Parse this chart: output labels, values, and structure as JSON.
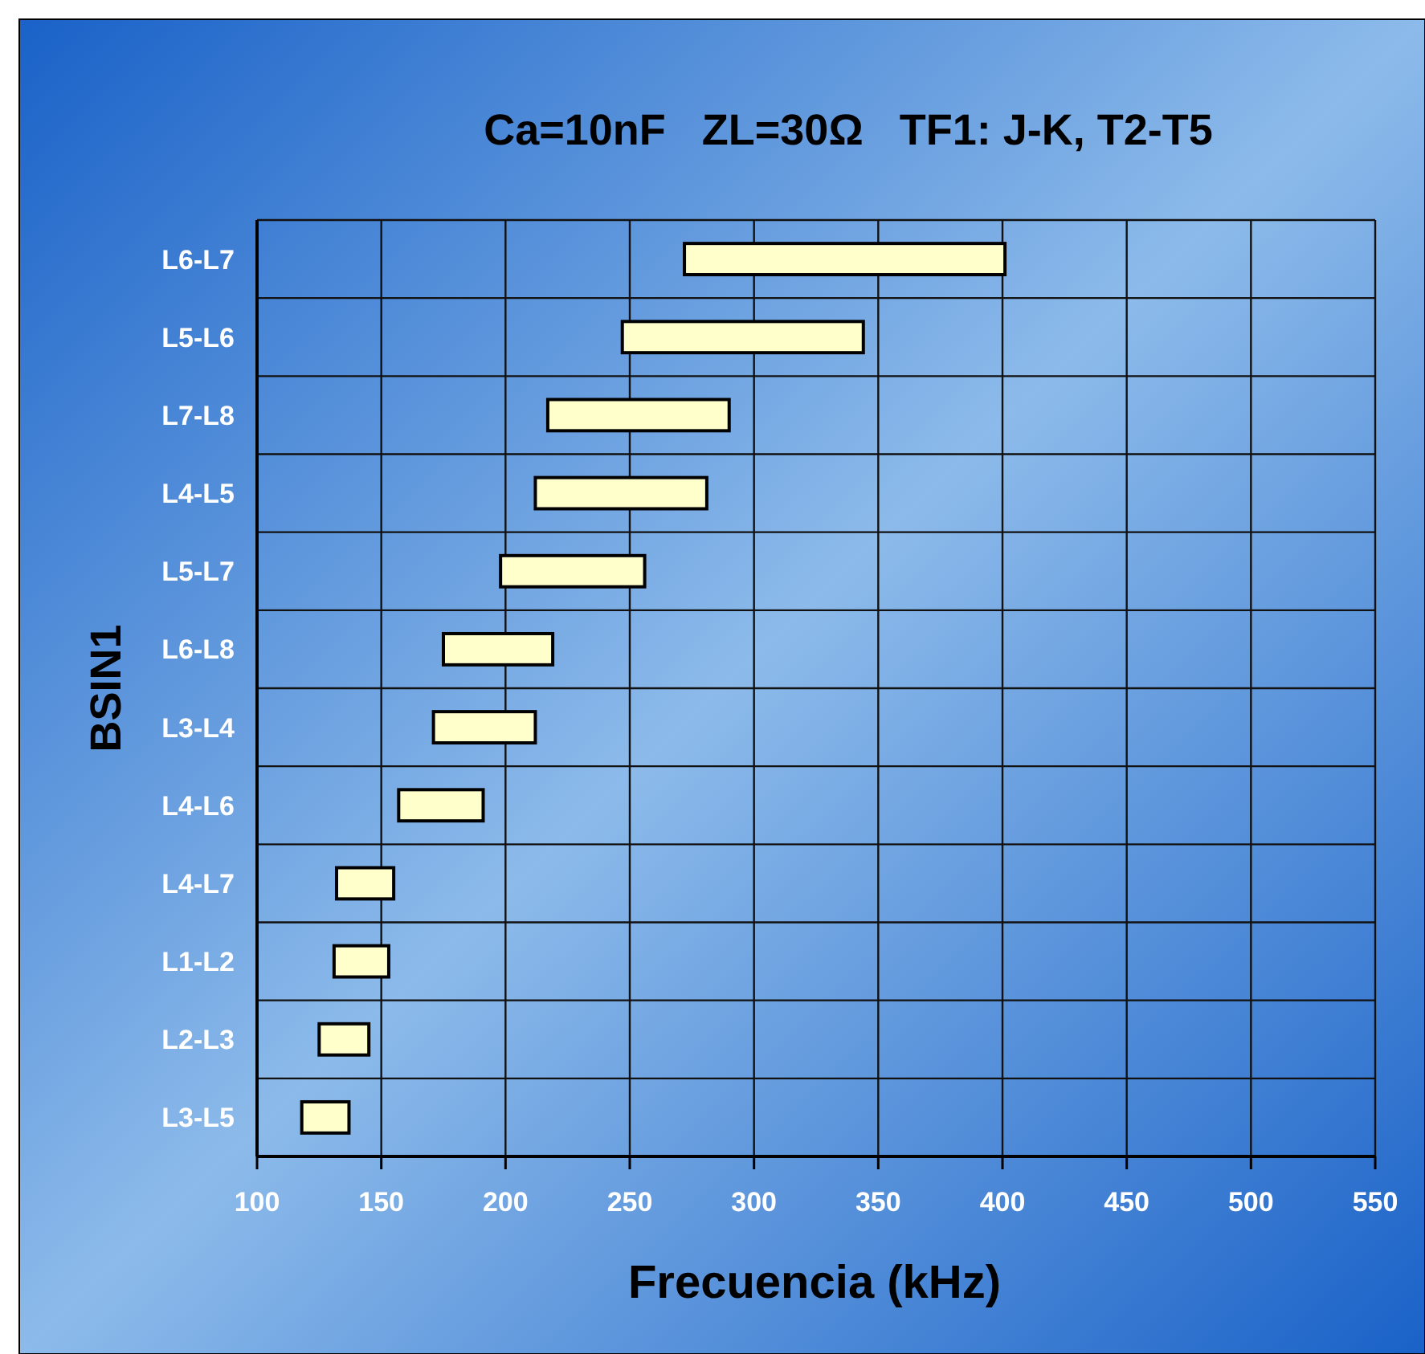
{
  "chart_data": {
    "type": "bar",
    "orientation": "horizontal",
    "title": "Ca=10nF   ZL=30Ω   TF1: J-K, T2-T5",
    "xlabel": "Frecuencia (kHz)",
    "ylabel": "BSIN1",
    "categories": [
      "L6-L7",
      "L5-L6",
      "L7-L8",
      "L4-L5",
      "L5-L7",
      "L6-L8",
      "L3-L4",
      "L4-L6",
      "L4-L7",
      "L1-L2",
      "L2-L3",
      "L3-L5"
    ],
    "base": [
      272,
      247,
      217,
      212,
      198,
      175,
      171,
      157,
      132,
      131,
      125,
      118
    ],
    "values": [
      129,
      97,
      73,
      69,
      58,
      44,
      41,
      34,
      23,
      22,
      20,
      19
    ],
    "color": "#ffffcc",
    "xlim": [
      100,
      550
    ],
    "xticks": [
      100,
      150,
      200,
      250,
      300,
      350,
      400,
      450,
      500,
      550
    ],
    "grid": true
  }
}
